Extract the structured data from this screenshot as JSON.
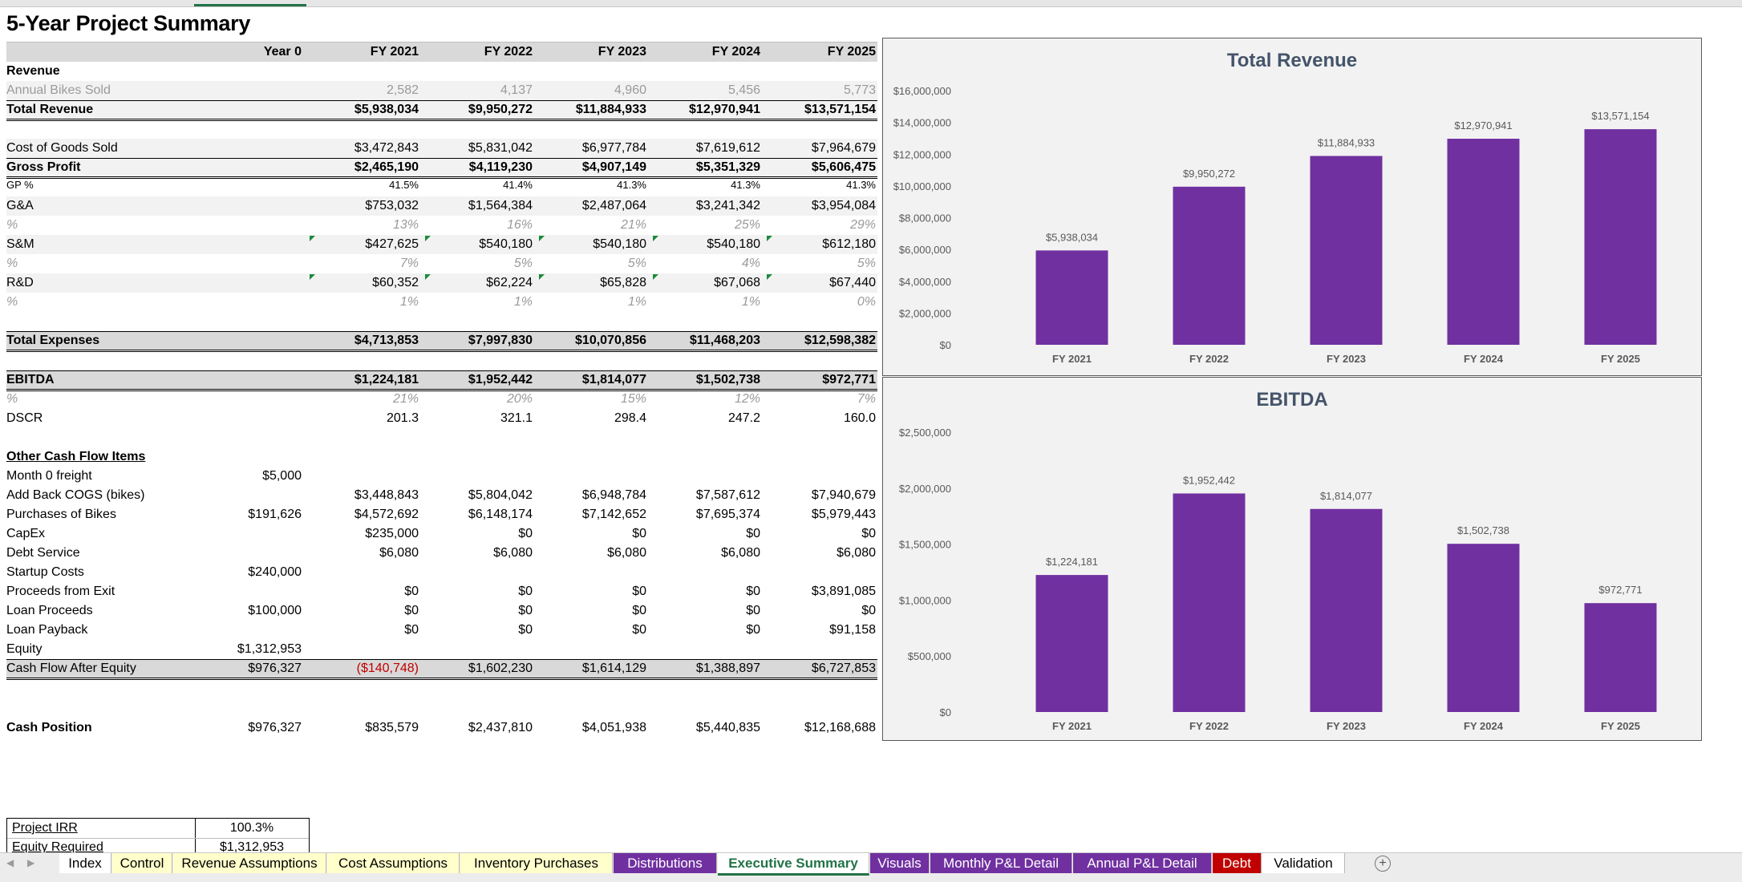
{
  "sheet_title": "5-Year Project Summary",
  "col_headers": [
    "Year 0",
    "FY 2021",
    "FY 2022",
    "FY 2023",
    "FY 2024",
    "FY 2025"
  ],
  "rows": {
    "revenue_section": "Revenue",
    "bikes": {
      "label": "Annual Bikes Sold",
      "values": [
        "",
        "2,582",
        "4,137",
        "4,960",
        "5,456",
        "5,773"
      ]
    },
    "total_revenue": {
      "label": "Total Revenue",
      "values": [
        "",
        "$5,938,034",
        "$9,950,272",
        "$11,884,933",
        "$12,970,941",
        "$13,571,154"
      ]
    },
    "cogs": {
      "label": "Cost of Goods Sold",
      "values": [
        "",
        "$3,472,843",
        "$5,831,042",
        "$6,977,784",
        "$7,619,612",
        "$7,964,679"
      ]
    },
    "gross_profit": {
      "label": "Gross Profit",
      "values": [
        "",
        "$2,465,190",
        "$4,119,230",
        "$4,907,149",
        "$5,351,329",
        "$5,606,475"
      ]
    },
    "gp_pct": {
      "label": "GP %",
      "values": [
        "",
        "41.5%",
        "41.4%",
        "41.3%",
        "41.3%",
        "41.3%"
      ]
    },
    "ga": {
      "label": "G&A",
      "values": [
        "",
        "$753,032",
        "$1,564,384",
        "$2,487,064",
        "$3,241,342",
        "$3,954,084"
      ]
    },
    "ga_pct": {
      "label": "%",
      "values": [
        "",
        "13%",
        "16%",
        "21%",
        "25%",
        "29%"
      ]
    },
    "sm": {
      "label": "S&M",
      "values": [
        "",
        "$427,625",
        "$540,180",
        "$540,180",
        "$540,180",
        "$612,180"
      ]
    },
    "sm_pct": {
      "label": "%",
      "values": [
        "",
        "7%",
        "5%",
        "5%",
        "4%",
        "5%"
      ]
    },
    "rd": {
      "label": "R&D",
      "values": [
        "",
        "$60,352",
        "$62,224",
        "$65,828",
        "$67,068",
        "$67,440"
      ]
    },
    "rd_pct": {
      "label": "%",
      "values": [
        "",
        "1%",
        "1%",
        "1%",
        "1%",
        "0%"
      ]
    },
    "total_expenses": {
      "label": "Total Expenses",
      "values": [
        "",
        "$4,713,853",
        "$7,997,830",
        "$10,070,856",
        "$11,468,203",
        "$12,598,382"
      ]
    },
    "ebitda": {
      "label": "EBITDA",
      "values": [
        "",
        "$1,224,181",
        "$1,952,442",
        "$1,814,077",
        "$1,502,738",
        "$972,771"
      ]
    },
    "ebitda_pct": {
      "label": "%",
      "values": [
        "",
        "21%",
        "20%",
        "15%",
        "12%",
        "7%"
      ]
    },
    "dscr": {
      "label": "DSCR",
      "values": [
        "",
        "201.3",
        "321.1",
        "298.4",
        "247.2",
        "160.0"
      ]
    },
    "other_section": "Other Cash Flow Items",
    "month0": {
      "label": "Month 0 freight",
      "values": [
        "$5,000",
        "",
        "",
        "",
        "",
        ""
      ]
    },
    "addback": {
      "label": "Add Back COGS (bikes)",
      "values": [
        "",
        "$3,448,843",
        "$5,804,042",
        "$6,948,784",
        "$7,587,612",
        "$7,940,679"
      ]
    },
    "purchases": {
      "label": "Purchases of Bikes",
      "values": [
        "$191,626",
        "$4,572,692",
        "$6,148,174",
        "$7,142,652",
        "$7,695,374",
        "$5,979,443"
      ]
    },
    "capex": {
      "label": "CapEx",
      "values": [
        "",
        "$235,000",
        "$0",
        "$0",
        "$0",
        "$0"
      ]
    },
    "debt_service": {
      "label": "Debt Service",
      "values": [
        "",
        "$6,080",
        "$6,080",
        "$6,080",
        "$6,080",
        "$6,080"
      ]
    },
    "startup": {
      "label": "Startup Costs",
      "values": [
        "$240,000",
        "",
        "",
        "",
        "",
        ""
      ]
    },
    "exit": {
      "label": "Proceeds from Exit",
      "values": [
        "",
        "$0",
        "$0",
        "$0",
        "$0",
        "$3,891,085"
      ]
    },
    "loan_proceeds": {
      "label": "Loan Proceeds",
      "values": [
        "$100,000",
        "$0",
        "$0",
        "$0",
        "$0",
        "$0"
      ]
    },
    "loan_payback": {
      "label": "Loan Payback",
      "values": [
        "",
        "$0",
        "$0",
        "$0",
        "$0",
        "$91,158"
      ]
    },
    "equity": {
      "label": "Equity",
      "values": [
        "$1,312,953",
        "",
        "",
        "",
        "",
        ""
      ]
    },
    "cfae": {
      "label": "Cash Flow After Equity",
      "values": [
        "$976,327",
        "($140,748)",
        "$1,602,230",
        "$1,614,129",
        "$1,388,897",
        "$6,727,853"
      ]
    },
    "cash_position": {
      "label": "Cash Position",
      "values": [
        "$976,327",
        "$835,579",
        "$2,437,810",
        "$4,051,938",
        "$5,440,835",
        "$12,168,688"
      ]
    }
  },
  "summary_box": {
    "irr_label": "Project IRR",
    "irr_value": "100.3%",
    "equity_label": "Equity Required",
    "equity_value": "$1,312,953"
  },
  "chart_data": [
    {
      "type": "bar",
      "title": "Total Revenue",
      "categories": [
        "FY 2021",
        "FY 2022",
        "FY 2023",
        "FY 2024",
        "FY 2025"
      ],
      "values": [
        5938034,
        9950272,
        11884933,
        12970941,
        13571154
      ],
      "data_labels": [
        "$5,938,034",
        "$9,950,272",
        "$11,884,933",
        "$12,970,941",
        "$13,571,154"
      ],
      "ylim": [
        0,
        16000000
      ],
      "yticks": [
        "$0",
        "$2,000,000",
        "$4,000,000",
        "$6,000,000",
        "$8,000,000",
        "$10,000,000",
        "$12,000,000",
        "$14,000,000",
        "$16,000,000"
      ],
      "bar_color": "#7030a0",
      "grid": false,
      "legend": "none"
    },
    {
      "type": "bar",
      "title": "EBITDA",
      "categories": [
        "FY 2021",
        "FY 2022",
        "FY 2023",
        "FY 2024",
        "FY 2025"
      ],
      "values": [
        1224181,
        1952442,
        1814077,
        1502738,
        972771
      ],
      "data_labels": [
        "$1,224,181",
        "$1,952,442",
        "$1,814,077",
        "$1,502,738",
        "$972,771"
      ],
      "ylim": [
        0,
        2500000
      ],
      "yticks": [
        "$0",
        "$500,000",
        "$1,000,000",
        "$1,500,000",
        "$2,000,000",
        "$2,500,000"
      ],
      "bar_color": "#7030a0",
      "grid": false,
      "legend": "none"
    }
  ],
  "sheet_tabs": [
    {
      "label": "Index",
      "color": "#ffffff",
      "text": "#000000"
    },
    {
      "label": "Control",
      "color": "#ffffcc",
      "text": "#000000"
    },
    {
      "label": "Revenue Assumptions",
      "color": "#ffffcc",
      "text": "#000000"
    },
    {
      "label": "Cost Assumptions",
      "color": "#ffffcc",
      "text": "#000000"
    },
    {
      "label": "Inventory Purchases",
      "color": "#ffffcc",
      "text": "#000000"
    },
    {
      "label": "Distributions",
      "color": "#7030a0",
      "text": "#ffffff"
    },
    {
      "label": "Executive Summary",
      "color": "#ffffff",
      "text": "#217346",
      "active": true
    },
    {
      "label": "Visuals",
      "color": "#7030a0",
      "text": "#ffffff"
    },
    {
      "label": "Monthly P&L Detail",
      "color": "#7030a0",
      "text": "#ffffff"
    },
    {
      "label": "Annual P&L Detail",
      "color": "#7030a0",
      "text": "#ffffff"
    },
    {
      "label": "Debt",
      "color": "#c00000",
      "text": "#ffffff"
    },
    {
      "label": "Validation",
      "color": "#ffffff",
      "text": "#000000"
    }
  ],
  "add_sheet_icon": "plus-circle-icon",
  "nav_icons": [
    "caret-left-icon",
    "caret-right-icon"
  ],
  "accent_color": "#217346"
}
